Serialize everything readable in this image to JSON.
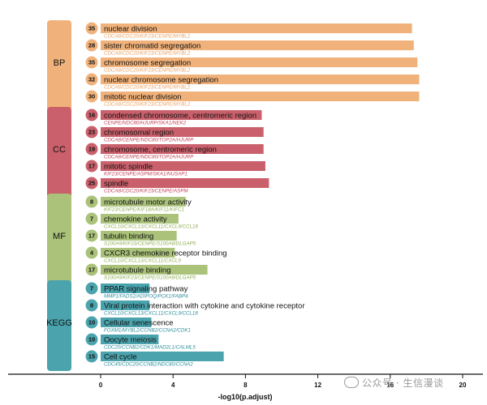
{
  "chart_data": {
    "type": "bar",
    "orientation": "horizontal",
    "xlabel": "-log10(p.adjust)",
    "xlim": [
      -2.5,
      22
    ],
    "xticks": [
      0,
      4,
      8,
      12,
      16,
      20
    ],
    "colors": {
      "BP": "#f0b27a",
      "CC": "#c9606b",
      "MF": "#aac27a",
      "KEGG": "#4aa3ad",
      "BP_gene_text": "#e8a366",
      "CC_gene_text": "#c0475a",
      "MF_gene_text": "#8fae55",
      "KEGG_gene_text": "#2f8f9c"
    },
    "groups": [
      {
        "category": "BP",
        "terms": [
          {
            "term": "nuclear division",
            "value": 17.2,
            "count": "35",
            "genes": "CDCA8/CDC20/KIF23/CENPE/MYBL2"
          },
          {
            "term": "sister chromatid segregation",
            "value": 17.3,
            "count": "28",
            "genes": "CDCA8/CDC20/KIF23/CENPE/MYBL2"
          },
          {
            "term": "chromosome segregation",
            "value": 17.5,
            "count": "35",
            "genes": "CDCA8/CDC20/KIF23/CENPE/MYBL2"
          },
          {
            "term": "nuclear chromosome segregation",
            "value": 17.6,
            "count": "32",
            "genes": "CDCA8/CDC20/KIF23/CENPE/MYBL2"
          },
          {
            "term": "mitotic nuclear division",
            "value": 17.6,
            "count": "30",
            "genes": "CDCA8/CDC20/KIF23/CENPE/MYBL2"
          }
        ]
      },
      {
        "category": "CC",
        "terms": [
          {
            "term": "condensed chromosome, centromeric region",
            "value": 8.9,
            "count": "16",
            "genes": "CENPE/NDC80/HJURP/SKA1/NEK2"
          },
          {
            "term": "chromosomal region",
            "value": 9.0,
            "count": "23",
            "genes": "CDCA8/CENPE/NDC80/TOP2A/HJURP"
          },
          {
            "term": "chromosome, centromeric region",
            "value": 9.0,
            "count": "19",
            "genes": "CDCA8/CENPE/NDC80/TOP2A/HJURP"
          },
          {
            "term": "mitotic spindle",
            "value": 9.1,
            "count": "17",
            "genes": "KIF23/CENPE/ASPM/SKA1/NUSAP1"
          },
          {
            "term": "spindle",
            "value": 9.3,
            "count": "25",
            "genes": "CDCA8/CDC20/KIF23/CENPE/ASPM"
          }
        ]
      },
      {
        "category": "MF",
        "terms": [
          {
            "term": "microtubule motor activity",
            "value": 4.7,
            "count": "8",
            "genes": "KIF23/CENPE/KIF18A/KIF11/KIFC1"
          },
          {
            "term": "chemokine activity",
            "value": 4.3,
            "count": "7",
            "genes": "CXCL10/CXCL13/CXCL11/CXCL9/CCL18"
          },
          {
            "term": "tubulin binding",
            "value": 4.2,
            "count": "17",
            "genes": "S100A9/KIF23/CENPE/S100A8/DLGAP5"
          },
          {
            "term": "CXCR3 chemokine receptor binding",
            "value": 4.1,
            "count": "4",
            "genes": "CXCL10/CXCL13/CXCL11/CXCL9"
          },
          {
            "term": "microtubule binding",
            "value": 5.9,
            "count": "17",
            "genes": "S100A9/KIF23/CENPE/S100A8/DLGAP5"
          }
        ]
      },
      {
        "category": "KEGG",
        "terms": [
          {
            "term": "PPAR signaling pathway",
            "value": 2.7,
            "count": "7",
            "genes": "MMP1/FADS2/ADIPOQ/PCK1/FABP4"
          },
          {
            "term": "Viral protein interaction with cytokine and cytokine receptor",
            "value": 2.7,
            "count": "8",
            "genes": "CXCL10/CXCL13/CXCL11/CXCL9/CCL18"
          },
          {
            "term": "Cellular senescence",
            "value": 2.8,
            "count": "10",
            "genes": "FOXM1/MYBL2/CCNB2/CCNA2/CDK1"
          },
          {
            "term": "Oocyte meiosis",
            "value": 3.2,
            "count": "10",
            "genes": "CDC20/CCNB2/CDK1/MAD2L1/CALML5"
          },
          {
            "term": "Cell cycle",
            "value": 6.8,
            "count": "15",
            "genes": "CDC45/CDC20/CCNB2/NDC80/CCNA2"
          }
        ]
      }
    ]
  },
  "watermark": {
    "text": "公众号 · 生信漫谈"
  }
}
